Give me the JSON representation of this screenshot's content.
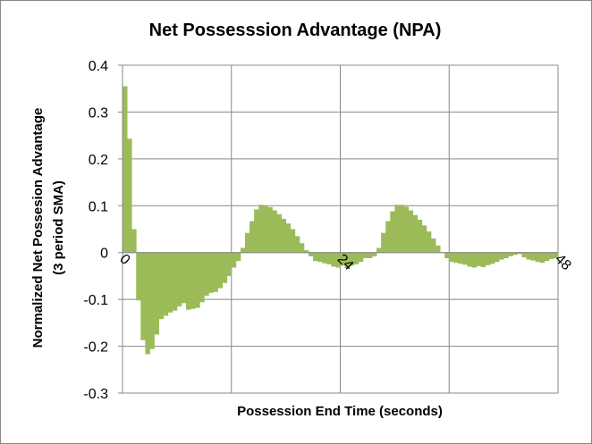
{
  "chart_data": {
    "type": "bar",
    "title": "Net Possesssion Advantage (NPA)",
    "xlabel": "Possession End Time (seconds)",
    "ylabel_lines": [
      "Normalized Net Possesion Advantage",
      "(3 period SMA)"
    ],
    "ylim": [
      -0.3,
      0.4
    ],
    "y_ticks": [
      "0.4",
      "0.3",
      "0.2",
      "0.1",
      "0",
      "-0.1",
      "-0.2",
      "-0.3"
    ],
    "y_tick_values": [
      0.4,
      0.3,
      0.2,
      0.1,
      0,
      -0.1,
      -0.2,
      -0.3
    ],
    "x_ticks": [
      "0",
      "24",
      "48"
    ],
    "x_tick_values": [
      0,
      24,
      48
    ],
    "xlim": [
      0,
      48
    ],
    "grid": true,
    "colors": {
      "bar": "#9BBB59",
      "grid": "#888888",
      "axis": "#888888"
    },
    "x": [
      0,
      0.5,
      1,
      1.5,
      2,
      2.5,
      3,
      3.5,
      4,
      4.5,
      5,
      5.5,
      6,
      6.5,
      7,
      7.5,
      8,
      8.5,
      9,
      9.5,
      10,
      10.5,
      11,
      11.5,
      12,
      12.5,
      13,
      13.5,
      14,
      14.5,
      15,
      15.5,
      16,
      16.5,
      17,
      17.5,
      18,
      18.5,
      19,
      19.5,
      20,
      20.5,
      21,
      21.5,
      22,
      22.5,
      23,
      23.5,
      24,
      24.5,
      25,
      25.5,
      26,
      26.5,
      27,
      27.5,
      28,
      28.5,
      29,
      29.5,
      30,
      30.5,
      31,
      31.5,
      32,
      32.5,
      33,
      33.5,
      34,
      34.5,
      35,
      35.5,
      36,
      36.5,
      37,
      37.5,
      38,
      38.5,
      39,
      39.5,
      40,
      40.5,
      41,
      41.5,
      42,
      42.5,
      43,
      43.5,
      44,
      44.5,
      45,
      45.5,
      46,
      46.5,
      47,
      47.5
    ],
    "values": [
      0.355,
      0.243,
      0.05,
      -0.102,
      -0.187,
      -0.217,
      -0.206,
      -0.175,
      -0.142,
      -0.135,
      -0.128,
      -0.124,
      -0.115,
      -0.108,
      -0.122,
      -0.12,
      -0.118,
      -0.106,
      -0.092,
      -0.086,
      -0.084,
      -0.076,
      -0.065,
      -0.05,
      -0.032,
      -0.018,
      0.01,
      0.042,
      0.067,
      0.092,
      0.102,
      0.1,
      0.097,
      0.09,
      0.082,
      0.072,
      0.062,
      0.05,
      0.035,
      0.02,
      0.005,
      -0.008,
      -0.018,
      -0.02,
      -0.023,
      -0.025,
      -0.03,
      -0.032,
      -0.028,
      -0.033,
      -0.028,
      -0.025,
      -0.02,
      -0.012,
      -0.012,
      -0.008,
      0.01,
      0.042,
      0.067,
      0.088,
      0.102,
      0.102,
      0.098,
      0.09,
      0.08,
      0.07,
      0.058,
      0.045,
      0.03,
      0.015,
      0.0,
      -0.012,
      -0.02,
      -0.022,
      -0.024,
      -0.026,
      -0.03,
      -0.032,
      -0.029,
      -0.031,
      -0.027,
      -0.024,
      -0.02,
      -0.015,
      -0.012,
      -0.008,
      -0.005,
      -0.003,
      -0.01,
      -0.015,
      -0.017,
      -0.02,
      -0.022,
      -0.018,
      -0.014,
      -0.012
    ]
  }
}
